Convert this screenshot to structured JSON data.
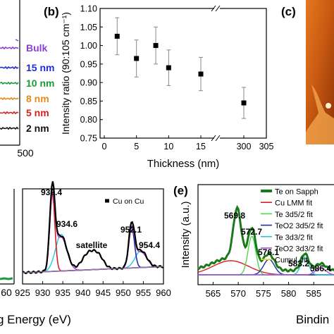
{
  "panel_labels": {
    "b": "(b)",
    "c": "(c)",
    "e": "(e)"
  },
  "panel_a": {
    "labels": [
      "Bulk",
      "15 nm",
      "10 nm",
      "8 nm",
      "5 nm",
      "2 nm"
    ],
    "label_colors": [
      "#8b3fd6",
      "#1f2bd6",
      "#1a9a3a",
      "#e38a1c",
      "#d62020",
      "#111111"
    ],
    "x_tick": "500"
  },
  "panel_d": {
    "xlabel_fragment": "g Energy (eV)",
    "left_tick_fragment": "60",
    "legend": "Cu on Cu",
    "peak_labels": [
      "932.4",
      "934.6",
      "satellite",
      "952.1",
      "954.4"
    ]
  },
  "panel_e": {
    "ylabel": "Intensity (a.u.)",
    "xlabel_fragment": "Bindin",
    "legend": [
      "Te on Sapph",
      "Cu LMM fit",
      "Te 3d5/2 fit",
      "TeO2 3d5/2 fit",
      "Te 3d3/2 fit",
      "TeO2 3d3/2 fit",
      "Cumul. fit"
    ],
    "legend_colors": [
      "#1a7a1a",
      "#d62020",
      "#4fd94f",
      "#1f2bb0",
      "#27c7e6",
      "#b04fd6",
      "#e6d41a"
    ],
    "peak_labels": [
      "569.8",
      "572.7",
      "576.1",
      "583.2",
      "586.4"
    ]
  },
  "chart_data": [
    {
      "type": "scatter",
      "title": "",
      "xlabel": "Thickness (nm)",
      "ylabel": "Intensity ratio (90:105 cm⁻¹)",
      "x_ticks": [
        "0",
        "5",
        "10",
        "15",
        "300",
        "305"
      ],
      "y_ticks": [
        "0.75",
        "0.80",
        "0.85",
        "0.90",
        "0.95",
        "1.00",
        "1.05",
        "1.10"
      ],
      "ylim": [
        0.75,
        1.1
      ],
      "broken_x_axis": true,
      "grid": false,
      "points": [
        {
          "x": 2,
          "y": 1.025,
          "err": 0.05
        },
        {
          "x": 5,
          "y": 0.965,
          "err": 0.05
        },
        {
          "x": 8,
          "y": 1.0,
          "err": 0.05
        },
        {
          "x": 10,
          "y": 0.94,
          "err": 0.048
        },
        {
          "x": 15,
          "y": 0.923,
          "err": 0.045
        },
        {
          "x": 300,
          "y": 0.845,
          "err": 0.042
        }
      ]
    },
    {
      "type": "line",
      "xlabel": "Binding Energy (eV)",
      "x_ticks": [
        "925",
        "930",
        "935",
        "940",
        "945",
        "950",
        "955",
        "960"
      ],
      "xlim": [
        925,
        960
      ],
      "series": [
        {
          "name": "Cu on Cu"
        }
      ]
    },
    {
      "type": "line",
      "xlabel": "Binding Energy",
      "ylabel": "Intensity (a.u.)",
      "x_ticks": [
        "565",
        "570",
        "575",
        "580",
        "585"
      ],
      "xlim": [
        562,
        590
      ],
      "series": [
        {
          "name": "Te on Sapph"
        },
        {
          "name": "Cu LMM fit"
        },
        {
          "name": "Te 3d5/2 fit"
        },
        {
          "name": "TeO2 3d5/2 fit"
        },
        {
          "name": "Te 3d3/2 fit"
        },
        {
          "name": "TeO2 3d3/2 fit"
        },
        {
          "name": "Cumul. fit"
        }
      ]
    }
  ]
}
